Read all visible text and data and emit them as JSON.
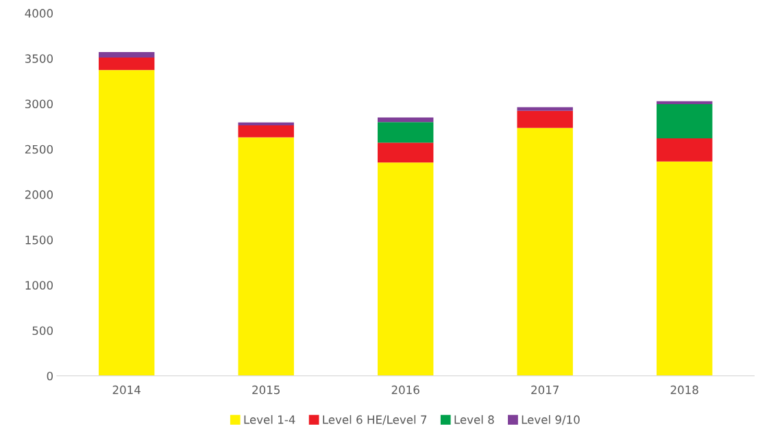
{
  "chart_data": {
    "type": "bar",
    "stacked": true,
    "categories": [
      "2014",
      "2015",
      "2016",
      "2017",
      "2018"
    ],
    "series": [
      {
        "name": "Level 1-4",
        "color": "#fff200",
        "values": [
          3372,
          2631,
          2353,
          2734,
          2364
        ]
      },
      {
        "name": "Level 6 HE/Level 7",
        "color": "#ed1c24",
        "values": [
          139,
          131,
          219,
          189,
          254
        ]
      },
      {
        "name": "Level 8",
        "color": "#00a14b",
        "values": [
          0,
          0,
          226,
          0,
          378
        ]
      },
      {
        "name": "Level 9/10",
        "color": "#7f3f98",
        "values": [
          60,
          33,
          52,
          40,
          32
        ]
      }
    ],
    "ylim": [
      0,
      4000
    ],
    "yticks": [
      0,
      500,
      1000,
      1500,
      2000,
      2500,
      3000,
      3500,
      4000
    ],
    "grid": false,
    "legend": "bottom"
  }
}
